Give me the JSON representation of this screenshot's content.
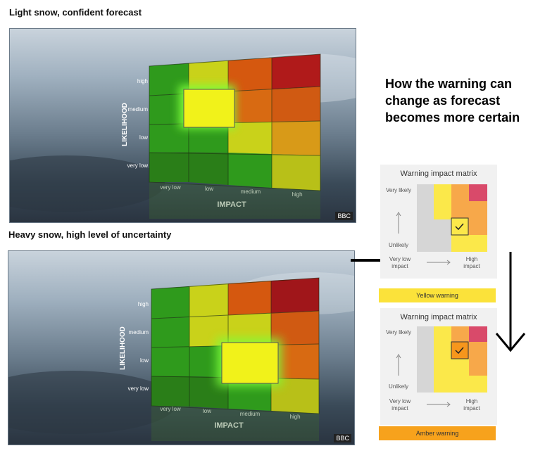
{
  "captions": {
    "top": "Light snow, confident forecast",
    "bottom": "Heavy snow, high level of uncertainty"
  },
  "headline": "How the warning can change as forecast becomes more certain",
  "matrix_labels": {
    "likelihood": "LIKELIHOOD",
    "impact": "IMPACT",
    "rows": [
      "high",
      "medium",
      "low",
      "very low"
    ],
    "cols": [
      "very low",
      "low",
      "medium",
      "high"
    ]
  },
  "watermark": "BBC",
  "grid_colors": [
    [
      "#2f9a1c",
      "#c9d21a",
      "#e07a10",
      "#c81e1e"
    ],
    [
      "#2f9a1c",
      "#c9d21a",
      "#e07a10",
      "#e07a10"
    ],
    [
      "#2f9a1c",
      "#2f9a1c",
      "#c9d21a",
      "#e0a010"
    ],
    [
      "#2f9a1c",
      "#2f9a1c",
      "#2f9a1c",
      "#c9d21a"
    ]
  ],
  "cards": [
    {
      "title": "Warning impact matrix",
      "y_top": "Very likely",
      "y_bottom": "Unlikely",
      "x_left": "Very low impact",
      "x_right": "High impact",
      "warning": "Yellow warning",
      "warning_color": "#fbe23a"
    },
    {
      "title": "Warning impact matrix",
      "y_top": "Very likely",
      "y_bottom": "Unlikely",
      "x_left": "Very low impact",
      "x_right": "High impact",
      "warning": "Amber warning",
      "warning_color": "#f7a21c"
    }
  ],
  "icons": [
    "check-icon",
    "down-arrow-icon"
  ]
}
